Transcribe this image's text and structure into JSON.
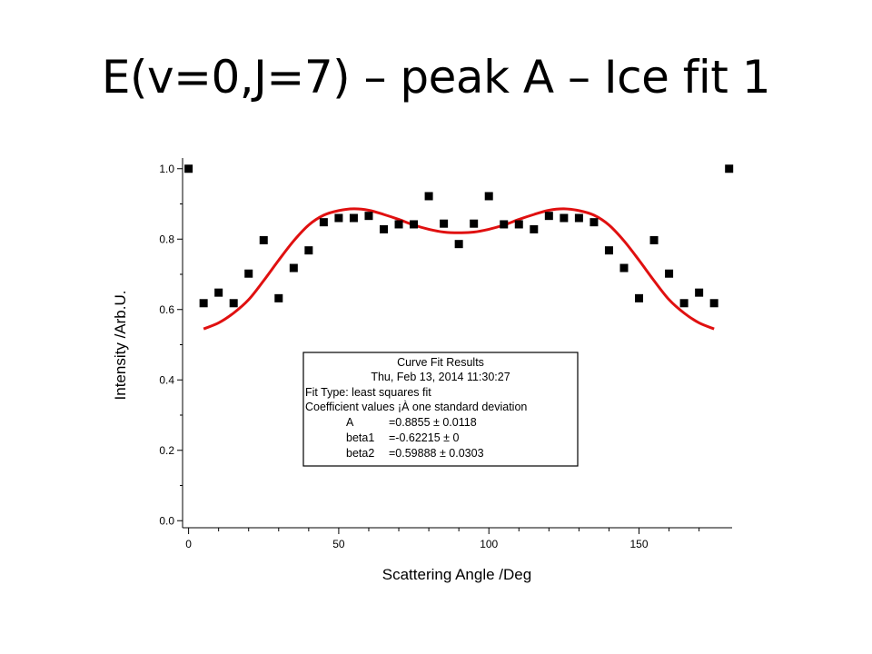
{
  "slide": {
    "title": "E(v=0,J=7) – peak A – Ice fit 1"
  },
  "chart_data": {
    "type": "scatter",
    "xlabel": "Scattering Angle /Deg",
    "ylabel": "Intensity /Arb.U.",
    "xlim": [
      -2,
      181
    ],
    "ylim": [
      -0.02,
      1.02
    ],
    "xticks": [
      0,
      50,
      100,
      150
    ],
    "yticks": [
      0.0,
      0.2,
      0.4,
      0.6,
      0.8,
      1.0
    ],
    "ytick_labels": [
      "0.0",
      "0.2",
      "0.4",
      "0.6",
      "0.8",
      "1.0"
    ],
    "grid": false,
    "series": [
      {
        "kind": "points",
        "color": "#000000",
        "marker": "square",
        "x": [
          0,
          5,
          10,
          15,
          20,
          25,
          30,
          35,
          40,
          45,
          50,
          55,
          60,
          65,
          70,
          75,
          80,
          85,
          90,
          95,
          100,
          105,
          110,
          115,
          120,
          125,
          130,
          135,
          140,
          145,
          150,
          155,
          160,
          165,
          170,
          175,
          180
        ],
        "y": [
          1.0,
          0.618,
          0.648,
          0.618,
          0.702,
          0.797,
          0.632,
          0.718,
          0.768,
          0.848,
          0.86,
          0.86,
          0.866,
          0.828,
          0.842,
          0.842,
          0.922,
          0.844,
          0.786,
          0.844,
          0.922,
          0.842,
          0.842,
          0.828,
          0.866,
          0.86,
          0.86,
          0.848,
          0.768,
          0.718,
          0.632,
          0.797,
          0.702,
          0.618,
          0.648,
          0.618,
          1.0
        ]
      },
      {
        "kind": "fit-curve",
        "color": "#e01010",
        "x": [
          5,
          10,
          15,
          20,
          25,
          30,
          35,
          40,
          45,
          50,
          55,
          60,
          65,
          70,
          75,
          80,
          85,
          90,
          95,
          100,
          105,
          110,
          115,
          120,
          125,
          130,
          135,
          140,
          145,
          150,
          155,
          160,
          165,
          170,
          175
        ],
        "y": [
          0.545,
          0.562,
          0.59,
          0.628,
          0.682,
          0.74,
          0.795,
          0.84,
          0.868,
          0.881,
          0.886,
          0.882,
          0.87,
          0.856,
          0.84,
          0.828,
          0.82,
          0.818,
          0.82,
          0.828,
          0.84,
          0.856,
          0.87,
          0.882,
          0.886,
          0.881,
          0.868,
          0.84,
          0.795,
          0.74,
          0.682,
          0.628,
          0.59,
          0.562,
          0.545
        ]
      }
    ],
    "annotation": {
      "title": "Curve Fit Results",
      "lines": [
        "Thu, Feb 13, 2014 11:30:27",
        "Fit Type: least squares fit",
        "Coefficient values ¡À one standard deviation"
      ],
      "coefficients": [
        {
          "name": "A",
          "value": "=0.8855 ± 0.0118"
        },
        {
          "name": "beta1",
          "value": "=-0.62215 ± 0"
        },
        {
          "name": "beta2",
          "value": "=0.59888 ± 0.0303"
        }
      ]
    }
  }
}
